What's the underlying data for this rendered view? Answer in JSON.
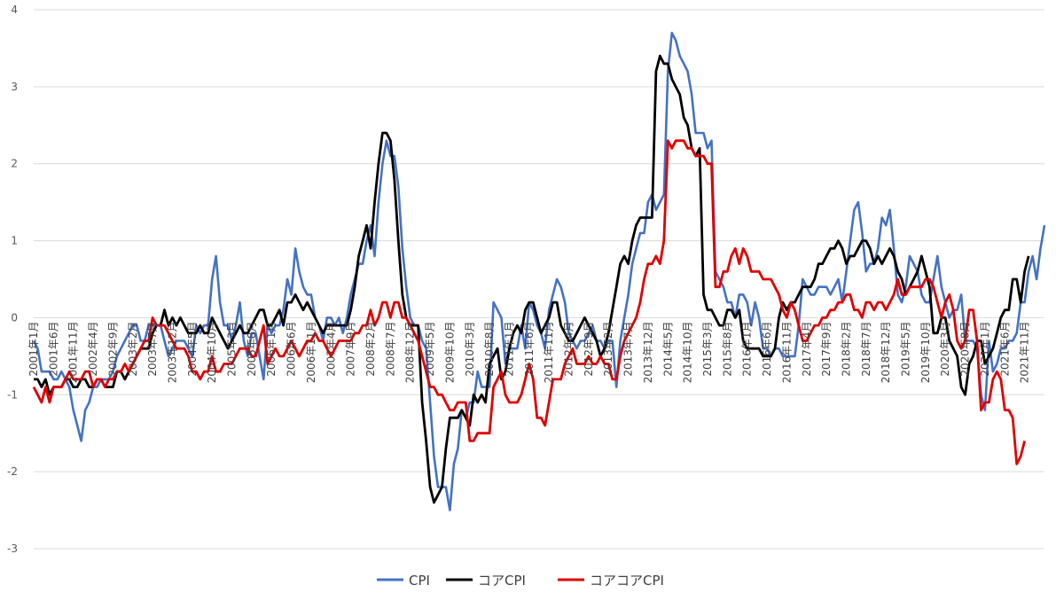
{
  "chart_data": {
    "type": "line",
    "title": "",
    "xlabel": "",
    "ylabel": "",
    "ylim": [
      -3,
      4
    ],
    "yticks": [
      "4",
      "3",
      "2",
      "1",
      "0",
      "-1",
      "-2",
      "-3"
    ],
    "grid": "horizontal",
    "legend_position": "bottom",
    "x_start": "2001年1月",
    "x_end": "2022年3月",
    "x_tick_labels": [
      "2001年1月",
      "2001年6月",
      "2001年11月",
      "2002年4月",
      "2002年9月",
      "2003年2月",
      "2003年7月",
      "2003年12月",
      "2004年5月",
      "2004年10月",
      "2005年3月",
      "2005年8月",
      "2006年1月",
      "2006年6月",
      "2006年11月",
      "2007年4月",
      "2007年9月",
      "2008年2月",
      "2008年7月",
      "2008年12月",
      "2009年5月",
      "2009年10月",
      "2010年3月",
      "2010年8月",
      "2011年1月",
      "2011年6月",
      "2011年11月",
      "2012年4月",
      "2012年9月",
      "2013年2月",
      "2013年7月",
      "2013年12月",
      "2014年5月",
      "2014年10月",
      "2015年3月",
      "2015年8月",
      "2016年1月",
      "2016年6月",
      "2016年11月",
      "2017年4月",
      "2017年9月",
      "2018年2月",
      "2018年7月",
      "2018年12月",
      "2019年5月",
      "2019年10月",
      "2020年3月",
      "2020年8月",
      "2021年1月",
      "2021年6月",
      "2021年11月"
    ],
    "series": [
      {
        "name": "CPI",
        "color": "#4472C4",
        "values": [
          -0.3,
          -0.4,
          -0.7,
          -0.7,
          -0.7,
          -0.8,
          -0.8,
          -0.7,
          -0.8,
          -0.9,
          -1.2,
          -1.4,
          -1.6,
          -1.2,
          -1.1,
          -0.9,
          -0.9,
          -0.8,
          -0.8,
          -0.8,
          -0.7,
          -0.5,
          -0.4,
          -0.3,
          -0.2,
          -0.1,
          -0.1,
          -0.3,
          -0.3,
          -0.1,
          -0.1,
          -0.1,
          -0.1,
          -0.3,
          -0.5,
          -0.4,
          -0.3,
          -0.3,
          -0.3,
          -0.4,
          -0.5,
          -0.1,
          -0.2,
          -0.1,
          -0.1,
          0.5,
          0.8,
          0.2,
          -0.1,
          -0.1,
          -0.3,
          -0.1,
          0.2,
          -0.3,
          -0.5,
          -0.2,
          -0.2,
          -0.5,
          -0.8,
          -0.1,
          -0.2,
          -0.1,
          -0.1,
          0.1,
          0.5,
          0.3,
          0.9,
          0.6,
          0.4,
          0.3,
          0.3,
          0.0,
          -0.1,
          -0.3,
          0.0,
          0.0,
          -0.1,
          0.0,
          -0.2,
          0.0,
          0.3,
          0.5,
          0.7,
          0.7,
          1.0,
          1.2,
          0.8,
          1.5,
          2.0,
          2.3,
          2.1,
          2.1,
          1.7,
          0.9,
          0.4,
          0.0,
          -0.1,
          -0.1,
          -0.3,
          -0.4,
          -1.1,
          -1.8,
          -2.2,
          -2.2,
          -2.2,
          -2.5,
          -1.9,
          -1.7,
          -1.2,
          -1.3,
          -1.1,
          -1.1,
          -0.7,
          -0.9,
          -0.9,
          -0.9,
          0.2,
          0.1,
          0.0,
          -0.6,
          -0.4,
          -0.4,
          -0.4,
          -0.1,
          -0.4,
          0.2,
          0.1,
          -0.1,
          -0.2,
          -0.4,
          0.1,
          0.3,
          0.5,
          0.4,
          0.2,
          -0.2,
          -0.3,
          -0.4,
          -0.3,
          -0.3,
          -0.2,
          -0.1,
          -0.3,
          -0.3,
          -0.4,
          -0.3,
          -0.3,
          -0.9,
          -0.3,
          0.0,
          0.3,
          0.7,
          0.9,
          1.1,
          1.1,
          1.5,
          1.6,
          1.4,
          1.5,
          1.6,
          3.2,
          3.7,
          3.6,
          3.4,
          3.3,
          3.2,
          2.9,
          2.4,
          2.4,
          2.4,
          2.2,
          2.3,
          0.6,
          0.5,
          0.4,
          0.2,
          0.2,
          0.0,
          0.3,
          0.3,
          0.2,
          -0.1,
          0.2,
          0.0,
          -0.4,
          -0.4,
          -0.5,
          -0.4,
          -0.4,
          -0.5,
          -0.5,
          -0.5,
          -0.5,
          -0.1,
          0.5,
          0.4,
          0.3,
          0.3,
          0.4,
          0.4,
          0.4,
          0.3,
          0.4,
          0.5,
          0.2,
          0.6,
          1.0,
          1.4,
          1.5,
          1.1,
          0.6,
          0.7,
          0.7,
          0.9,
          1.3,
          1.2,
          1.4,
          0.9,
          0.3,
          0.2,
          0.4,
          0.8,
          0.7,
          0.6,
          0.3,
          0.2,
          0.2,
          0.5,
          0.8,
          0.4,
          0.2,
          0.0,
          0.1,
          0.1,
          0.3,
          -0.3,
          -0.3,
          -0.3,
          -0.4,
          -1.0,
          -1.2,
          -0.3,
          -0.7,
          -0.6,
          -0.4,
          -0.4,
          -0.3,
          -0.3,
          -0.2,
          0.2,
          0.2,
          0.6,
          0.8,
          0.5,
          0.9,
          1.2
        ]
      },
      {
        "name": "コアCPI",
        "color": "#000000",
        "values": [
          -0.8,
          -0.8,
          -0.9,
          -0.8,
          -1.0,
          -0.9,
          -0.9,
          -0.9,
          -0.8,
          -0.8,
          -0.9,
          -0.9,
          -0.8,
          -0.8,
          -0.9,
          -0.9,
          -0.8,
          -0.8,
          -0.9,
          -0.9,
          -0.9,
          -0.7,
          -0.7,
          -0.8,
          -0.7,
          -0.6,
          -0.5,
          -0.4,
          -0.4,
          -0.4,
          -0.2,
          -0.1,
          -0.1,
          0.1,
          -0.1,
          0.0,
          -0.1,
          0.0,
          -0.1,
          -0.2,
          -0.2,
          -0.2,
          -0.1,
          -0.2,
          -0.2,
          0.0,
          -0.1,
          -0.2,
          -0.3,
          -0.4,
          -0.3,
          -0.2,
          -0.1,
          -0.2,
          -0.2,
          -0.1,
          0.0,
          0.1,
          0.1,
          -0.1,
          -0.1,
          0.0,
          0.1,
          -0.1,
          0.2,
          0.2,
          0.3,
          0.2,
          0.1,
          0.2,
          0.1,
          0.0,
          -0.1,
          -0.2,
          -0.1,
          -0.1,
          -0.1,
          -0.1,
          -0.1,
          -0.1,
          0.1,
          0.4,
          0.8,
          1.0,
          1.2,
          0.9,
          1.5,
          2.0,
          2.4,
          2.4,
          2.3,
          1.8,
          1.0,
          0.3,
          0.0,
          -0.1,
          -0.1,
          -0.1,
          -1.1,
          -1.6,
          -2.2,
          -2.4,
          -2.3,
          -2.2,
          -1.7,
          -1.3,
          -1.3,
          -1.3,
          -1.2,
          -1.3,
          -1.4,
          -1.0,
          -1.1,
          -1.0,
          -1.1,
          -0.6,
          -0.5,
          -0.4,
          -0.8,
          -0.7,
          -0.4,
          -0.2,
          -0.1,
          -0.2,
          0.1,
          0.2,
          0.2,
          0.0,
          -0.2,
          -0.1,
          0.0,
          0.2,
          0.2,
          -0.1,
          -0.2,
          -0.3,
          -0.3,
          -0.2,
          -0.1,
          0.0,
          -0.1,
          -0.2,
          -0.3,
          -0.5,
          -0.4,
          -0.2,
          0.1,
          0.4,
          0.7,
          0.8,
          0.7,
          1.0,
          1.2,
          1.3,
          1.3,
          1.3,
          1.3,
          3.2,
          3.4,
          3.3,
          3.3,
          3.1,
          3.0,
          2.9,
          2.6,
          2.5,
          2.2,
          2.1,
          2.2,
          0.3,
          0.1,
          0.1,
          0.0,
          -0.1,
          -0.1,
          0.1,
          0.1,
          0.0,
          0.1,
          -0.3,
          -0.4,
          -0.4,
          -0.4,
          -0.4,
          -0.5,
          -0.5,
          -0.5,
          -0.4,
          0.0,
          0.2,
          0.1,
          0.2,
          0.2,
          0.3,
          0.4,
          0.4,
          0.4,
          0.5,
          0.7,
          0.7,
          0.8,
          0.9,
          0.9,
          1.0,
          0.9,
          0.7,
          0.8,
          0.8,
          0.9,
          1.0,
          1.0,
          0.9,
          0.7,
          0.8,
          0.7,
          0.8,
          0.9,
          0.8,
          0.6,
          0.5,
          0.3,
          0.4,
          0.5,
          0.6,
          0.8,
          0.6,
          0.4,
          -0.2,
          -0.2,
          0.0,
          0.0,
          -0.3,
          -0.4,
          -0.5,
          -0.9,
          -1.0,
          -0.6,
          -0.5,
          -0.3,
          -0.3,
          -0.6,
          -0.5,
          -0.4,
          -0.2,
          0.0,
          0.1,
          0.1,
          0.5,
          0.5,
          0.2,
          0.6,
          0.8
        ]
      },
      {
        "name": "コアコアCPI",
        "color": "#E00000",
        "values": [
          -0.9,
          -1.0,
          -1.1,
          -0.9,
          -1.1,
          -0.9,
          -0.9,
          -0.9,
          -0.8,
          -0.7,
          -0.8,
          -0.8,
          -0.8,
          -0.7,
          -0.7,
          -0.9,
          -0.8,
          -0.8,
          -0.9,
          -0.8,
          -0.8,
          -0.7,
          -0.7,
          -0.6,
          -0.7,
          -0.6,
          -0.5,
          -0.4,
          -0.3,
          -0.3,
          0.0,
          -0.1,
          -0.1,
          -0.1,
          -0.2,
          -0.3,
          -0.4,
          -0.4,
          -0.4,
          -0.5,
          -0.7,
          -0.7,
          -0.8,
          -0.7,
          -0.7,
          -0.5,
          -0.7,
          -0.7,
          -0.6,
          -0.6,
          -0.6,
          -0.5,
          -0.4,
          -0.4,
          -0.4,
          -0.5,
          -0.5,
          -0.3,
          -0.1,
          -0.6,
          -0.5,
          -0.4,
          -0.5,
          -0.5,
          -0.4,
          -0.3,
          -0.4,
          -0.5,
          -0.4,
          -0.3,
          -0.3,
          -0.2,
          -0.3,
          -0.3,
          -0.4,
          -0.5,
          -0.4,
          -0.3,
          -0.3,
          -0.3,
          -0.3,
          -0.2,
          -0.2,
          -0.1,
          -0.1,
          0.1,
          -0.1,
          0.0,
          0.2,
          0.2,
          0.0,
          0.2,
          0.2,
          0.0,
          0.0,
          -0.1,
          -0.2,
          -0.3,
          -0.5,
          -0.7,
          -0.9,
          -0.9,
          -1.0,
          -1.0,
          -1.1,
          -1.2,
          -1.2,
          -1.1,
          -1.1,
          -1.1,
          -1.6,
          -1.6,
          -1.5,
          -1.5,
          -1.5,
          -1.5,
          -0.9,
          -0.8,
          -0.7,
          -1.0,
          -1.1,
          -1.1,
          -1.1,
          -1.0,
          -0.8,
          -0.6,
          -0.8,
          -1.3,
          -1.3,
          -1.4,
          -1.1,
          -0.8,
          -0.8,
          -0.8,
          -0.6,
          -0.5,
          -0.4,
          -0.6,
          -0.6,
          -0.6,
          -0.5,
          -0.6,
          -0.6,
          -0.5,
          -0.6,
          -0.6,
          -0.8,
          -0.8,
          -0.5,
          -0.3,
          -0.2,
          -0.1,
          0.0,
          0.2,
          0.5,
          0.7,
          0.7,
          0.8,
          0.7,
          1.0,
          2.3,
          2.2,
          2.3,
          2.3,
          2.3,
          2.2,
          2.2,
          2.1,
          2.1,
          2.1,
          2.0,
          2.0,
          0.4,
          0.4,
          0.6,
          0.6,
          0.8,
          0.9,
          0.7,
          0.9,
          0.8,
          0.6,
          0.6,
          0.6,
          0.5,
          0.5,
          0.5,
          0.4,
          0.3,
          0.1,
          0.0,
          0.2,
          0.1,
          -0.1,
          -0.3,
          -0.3,
          -0.2,
          -0.1,
          -0.1,
          0.0,
          0.0,
          0.1,
          0.1,
          0.2,
          0.2,
          0.3,
          0.3,
          0.1,
          0.1,
          0.0,
          0.2,
          0.2,
          0.1,
          0.2,
          0.2,
          0.1,
          0.2,
          0.3,
          0.5,
          0.3,
          0.3,
          0.4,
          0.4,
          0.4,
          0.4,
          0.5,
          0.5,
          0.4,
          0.2,
          0.0,
          0.2,
          0.3,
          0.1,
          -0.3,
          -0.4,
          -0.3,
          0.1,
          0.1,
          -0.3,
          -1.2,
          -1.1,
          -1.1,
          -0.8,
          -0.7,
          -0.8,
          -1.2,
          -1.2,
          -1.3,
          -1.9,
          -1.8,
          -1.6
        ]
      }
    ]
  }
}
